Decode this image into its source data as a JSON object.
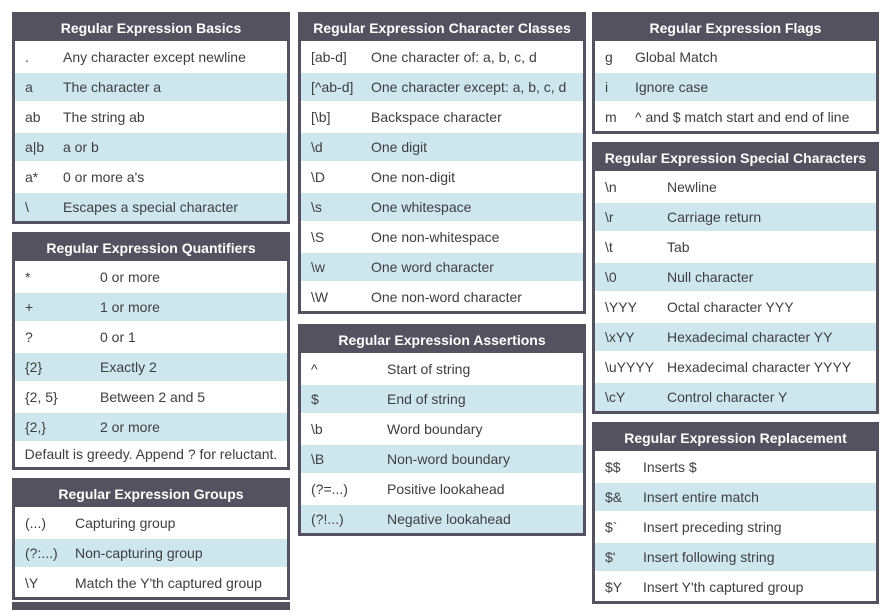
{
  "theme": {
    "header_bg": "#53525e",
    "border_color": "#53525e",
    "row_bg": "#ffffff",
    "row_alt_bg": "#cee7ef",
    "header_text_color": "#ffffff",
    "body_text_color": "#3e3e3e"
  },
  "tables": {
    "basics": {
      "title": "Regular Expression Basics",
      "rows": [
        {
          "code": ".",
          "desc": "Any character except newline"
        },
        {
          "code": "a",
          "desc": "The character a"
        },
        {
          "code": "ab",
          "desc": "The string ab"
        },
        {
          "code": "a|b",
          "desc": "a or b"
        },
        {
          "code": "a*",
          "desc": "0 or more a's"
        },
        {
          "code": "\\",
          "desc": "Escapes a special character"
        }
      ]
    },
    "quantifiers": {
      "title": "Regular Expression Quantifiers",
      "rows": [
        {
          "code": "*",
          "desc": "0 or more"
        },
        {
          "code": "+",
          "desc": "1 or more"
        },
        {
          "code": "?",
          "desc": "0 or 1"
        },
        {
          "code": "{2}",
          "desc": "Exactly 2"
        },
        {
          "code": "{2, 5}",
          "desc": "Between 2 and 5"
        },
        {
          "code": "{2,}",
          "desc": "2 or more"
        }
      ],
      "note": "Default is greedy. Append ? for reluctant."
    },
    "groups": {
      "title": "Regular Expression Groups",
      "rows": [
        {
          "code": "(...)",
          "desc": "Capturing group"
        },
        {
          "code": "(?:...)",
          "desc": "Non-capturing group"
        },
        {
          "code": "\\Y",
          "desc": "Match the Y'th captured group"
        }
      ]
    },
    "character_classes": {
      "title": "Regular Expression Character Classes",
      "rows": [
        {
          "code": "[ab-d]",
          "desc": "One character of: a, b, c, d"
        },
        {
          "code": "[^ab-d]",
          "desc": "One character except: a, b, c, d"
        },
        {
          "code": "[\\b]",
          "desc": "Backspace character"
        },
        {
          "code": "\\d",
          "desc": "One digit"
        },
        {
          "code": "\\D",
          "desc": "One non-digit"
        },
        {
          "code": "\\s",
          "desc": "One whitespace"
        },
        {
          "code": "\\S",
          "desc": "One non-whitespace"
        },
        {
          "code": "\\w",
          "desc": "One word character"
        },
        {
          "code": "\\W",
          "desc": "One non-word character"
        }
      ]
    },
    "assertions": {
      "title": "Regular Expression Assertions",
      "rows": [
        {
          "code": "^",
          "desc": "Start of string"
        },
        {
          "code": "$",
          "desc": "End of string"
        },
        {
          "code": "\\b",
          "desc": "Word boundary"
        },
        {
          "code": "\\B",
          "desc": "Non-word boundary"
        },
        {
          "code": "(?=...)",
          "desc": "Positive lookahead"
        },
        {
          "code": "(?!...)",
          "desc": "Negative lookahead"
        }
      ]
    },
    "flags": {
      "title": "Regular Expression Flags",
      "rows": [
        {
          "code": "g",
          "desc": "Global Match"
        },
        {
          "code": "i",
          "desc": "Ignore case"
        },
        {
          "code": "m",
          "desc": "^ and $ match start and end of line"
        }
      ]
    },
    "special_characters": {
      "title": "Regular Expression Special Characters",
      "rows": [
        {
          "code": "\\n",
          "desc": "Newline"
        },
        {
          "code": "\\r",
          "desc": "Carriage return"
        },
        {
          "code": "\\t",
          "desc": "Tab"
        },
        {
          "code": "\\0",
          "desc": "Null character"
        },
        {
          "code": "\\YYY",
          "desc": "Octal character YYY"
        },
        {
          "code": "\\xYY",
          "desc": "Hexadecimal character YY"
        },
        {
          "code": "\\uYYYY",
          "desc": "Hexadecimal character YYYY"
        },
        {
          "code": "\\cY",
          "desc": "Control character Y"
        }
      ]
    },
    "replacement": {
      "title": "Regular Expression Replacement",
      "rows": [
        {
          "code": "$$",
          "desc": "Inserts $"
        },
        {
          "code": "$&",
          "desc": "Insert entire match"
        },
        {
          "code": "$`",
          "desc": "Insert preceding string"
        },
        {
          "code": "$'",
          "desc": "Insert following string"
        },
        {
          "code": "$Y",
          "desc": "Insert Y'th captured group"
        }
      ]
    }
  }
}
